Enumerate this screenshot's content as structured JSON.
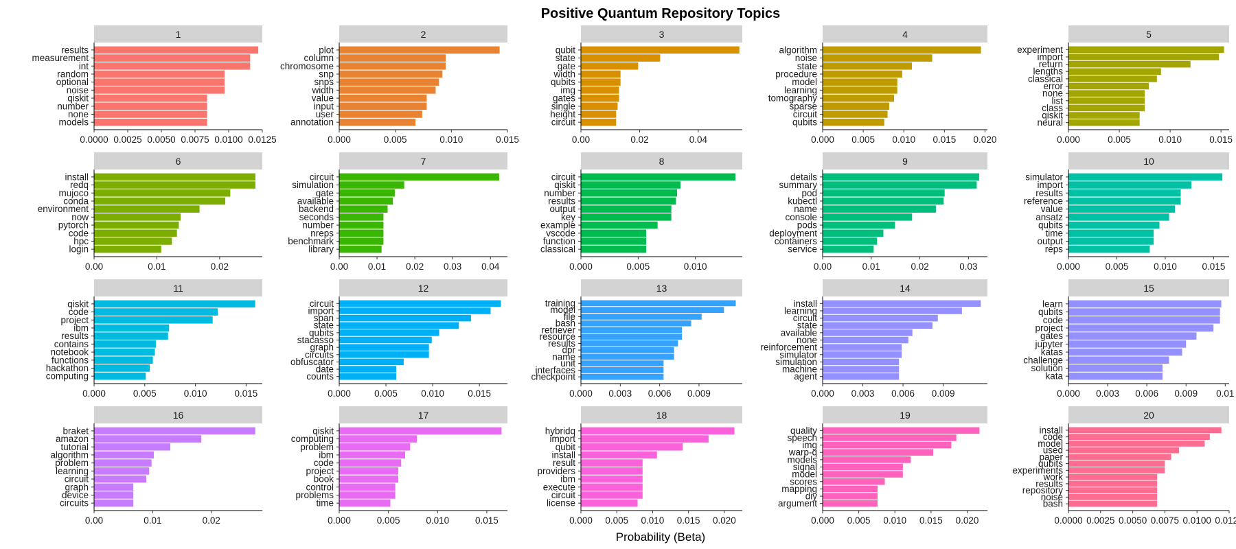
{
  "chart_data": {
    "type": "bar",
    "title": "Positive Quantum Repository Topics",
    "xlabel": "Probability (Beta)",
    "ylabel": "",
    "orientation": "horizontal",
    "grid": false,
    "legend": "none",
    "panels": [
      {
        "label": "1",
        "color": "#F8766D",
        "xlim": [
          0,
          0.0125
        ],
        "ticks": [
          0,
          0.0025,
          0.005,
          0.0075,
          0.01,
          0.0125
        ],
        "tick_labels": [
          "0.0000",
          "0.0025",
          "0.0050",
          "0.0075",
          "0.0100",
          "0.0125"
        ],
        "terms": [
          "results",
          "measurement",
          "int",
          "random",
          "optional",
          "noise",
          "qiskit",
          "number",
          "none",
          "models"
        ],
        "values": [
          0.0122,
          0.0116,
          0.0116,
          0.0097,
          0.0097,
          0.0097,
          0.0084,
          0.0084,
          0.0084,
          0.0084
        ]
      },
      {
        "label": "2",
        "color": "#EA8331",
        "xlim": [
          0,
          0.015
        ],
        "ticks": [
          0,
          0.005,
          0.01,
          0.015
        ],
        "tick_labels": [
          "0.000",
          "0.005",
          "0.010",
          "0.015"
        ],
        "terms": [
          "plot",
          "column",
          "chromosome",
          "snp",
          "snps",
          "width",
          "value",
          "input",
          "user",
          "annotation"
        ],
        "values": [
          0.0143,
          0.0095,
          0.0095,
          0.0092,
          0.0089,
          0.0086,
          0.0078,
          0.0078,
          0.0074,
          0.0068
        ]
      },
      {
        "label": "3",
        "color": "#D89000",
        "xlim": [
          0,
          0.055
        ],
        "ticks": [
          0,
          0.02,
          0.04
        ],
        "tick_labels": [
          "0.00",
          "0.02",
          "0.04"
        ],
        "terms": [
          "qubit",
          "state",
          "gate",
          "width",
          "qubits",
          "img",
          "gates",
          "single",
          "height",
          "circuit"
        ],
        "values": [
          0.054,
          0.027,
          0.0195,
          0.0135,
          0.0135,
          0.013,
          0.013,
          0.0125,
          0.012,
          0.012
        ]
      },
      {
        "label": "4",
        "color": "#C09B00",
        "xlim": [
          0,
          0.0203
        ],
        "ticks": [
          0,
          0.005,
          0.01,
          0.015,
          0.02
        ],
        "tick_labels": [
          "0.000",
          "0.005",
          "0.010",
          "0.015",
          "0.020"
        ],
        "terms": [
          "algorithm",
          "noise",
          "state",
          "procedure",
          "model",
          "learning",
          "tomography",
          "sparse",
          "circuit",
          "qubits"
        ],
        "values": [
          0.0195,
          0.0135,
          0.011,
          0.0098,
          0.0092,
          0.0092,
          0.0088,
          0.0082,
          0.008,
          0.0076
        ]
      },
      {
        "label": "5",
        "color": "#A3A500",
        "xlim": [
          0,
          0.0158
        ],
        "ticks": [
          0,
          0.005,
          0.01,
          0.015
        ],
        "tick_labels": [
          "0.000",
          "0.005",
          "0.010",
          "0.015"
        ],
        "terms": [
          "experiment",
          "import",
          "return",
          "lengths",
          "classical",
          "error",
          "none",
          "list",
          "class",
          "qiskit",
          "neural"
        ],
        "values": [
          0.0153,
          0.0148,
          0.012,
          0.0091,
          0.0087,
          0.0079,
          0.0075,
          0.0075,
          0.0075,
          0.007,
          0.007
        ]
      },
      {
        "label": "6",
        "color": "#7CAE00",
        "xlim": [
          0,
          0.0268
        ],
        "ticks": [
          0,
          0.01,
          0.02
        ],
        "tick_labels": [
          "0.00",
          "0.01",
          "0.02"
        ],
        "terms": [
          "install",
          "redq",
          "mujoco",
          "conda",
          "environment",
          "now",
          "pytorch",
          "code",
          "hpc",
          "login"
        ],
        "values": [
          0.0257,
          0.0257,
          0.0217,
          0.0209,
          0.0168,
          0.0138,
          0.0135,
          0.0132,
          0.0124,
          0.0107
        ]
      },
      {
        "label": "7",
        "color": "#39B600",
        "xlim": [
          0,
          0.0445
        ],
        "ticks": [
          0,
          0.01,
          0.02,
          0.03,
          0.04
        ],
        "tick_labels": [
          "0.00",
          "0.01",
          "0.02",
          "0.03",
          "0.04"
        ],
        "terms": [
          "circuit",
          "simulation",
          "gate",
          "available",
          "backend",
          "seconds",
          "number",
          "nreps",
          "benchmark",
          "library"
        ],
        "values": [
          0.0423,
          0.0172,
          0.0147,
          0.0142,
          0.0128,
          0.0117,
          0.0117,
          0.0117,
          0.0117,
          0.0112
        ]
      },
      {
        "label": "8",
        "color": "#00BB4E",
        "xlim": [
          0,
          0.0141
        ],
        "ticks": [
          0,
          0.005,
          0.01
        ],
        "tick_labels": [
          "0.000",
          "0.005",
          "0.010"
        ],
        "terms": [
          "circuit",
          "qiskit",
          "number",
          "results",
          "output",
          "key",
          "example",
          "vscode",
          "function",
          "classical"
        ],
        "values": [
          0.0135,
          0.0087,
          0.0084,
          0.0083,
          0.0079,
          0.0079,
          0.0067,
          0.0057,
          0.0057,
          0.0057
        ]
      },
      {
        "label": "9",
        "color": "#00BF7D",
        "xlim": [
          0,
          0.0339
        ],
        "ticks": [
          0,
          0.01,
          0.02,
          0.03
        ],
        "tick_labels": [
          "0.00",
          "0.01",
          "0.02",
          "0.03"
        ],
        "terms": [
          "details",
          "summary",
          "pod",
          "kubectl",
          "name",
          "console",
          "pods",
          "deployment",
          "containers",
          "service"
        ],
        "values": [
          0.0322,
          0.0317,
          0.0251,
          0.0249,
          0.0233,
          0.0184,
          0.0149,
          0.0125,
          0.0112,
          0.0105
        ]
      },
      {
        "label": "10",
        "color": "#00C1A3",
        "xlim": [
          0,
          0.0166
        ],
        "ticks": [
          0,
          0.005,
          0.01,
          0.015
        ],
        "tick_labels": [
          "0.000",
          "0.005",
          "0.010",
          "0.015"
        ],
        "terms": [
          "simulator",
          "import",
          "results",
          "reference",
          "value",
          "ansatz",
          "qubits",
          "time",
          "output",
          "reps"
        ],
        "values": [
          0.0159,
          0.0127,
          0.0116,
          0.0116,
          0.011,
          0.0104,
          0.0094,
          0.0088,
          0.0088,
          0.0084
        ]
      },
      {
        "label": "11",
        "color": "#00BAE0",
        "xlim": [
          0,
          0.0166
        ],
        "ticks": [
          0,
          0.005,
          0.01,
          0.015
        ],
        "tick_labels": [
          "0.000",
          "0.005",
          "0.010",
          "0.015"
        ],
        "terms": [
          "qiskit",
          "code",
          "project",
          "ibm",
          "results",
          "contains",
          "notebook",
          "functions",
          "hackathon",
          "computing"
        ],
        "values": [
          0.0159,
          0.0122,
          0.0117,
          0.0074,
          0.0073,
          0.0061,
          0.006,
          0.0058,
          0.0055,
          0.0051
        ]
      },
      {
        "label": "12",
        "color": "#00B0F6",
        "xlim": [
          0,
          0.018
        ],
        "ticks": [
          0,
          0.005,
          0.01,
          0.015
        ],
        "tick_labels": [
          "0.000",
          "0.005",
          "0.010",
          "0.015"
        ],
        "terms": [
          "circuit",
          "import",
          "span",
          "state",
          "qubits",
          "stacasso",
          "graph",
          "circuits",
          "obfuscator",
          "date",
          "counts"
        ],
        "values": [
          0.0173,
          0.0162,
          0.0141,
          0.0128,
          0.0107,
          0.0099,
          0.0096,
          0.0096,
          0.0069,
          0.0061,
          0.0061
        ]
      },
      {
        "label": "13",
        "color": "#35A2FF",
        "xlim": [
          0,
          0.0123
        ],
        "ticks": [
          0,
          0.003,
          0.006,
          0.009
        ],
        "tick_labels": [
          "0.000",
          "0.003",
          "0.006",
          "0.009"
        ],
        "terms": [
          "training",
          "model",
          "file",
          "bash",
          "retriever",
          "resource",
          "results",
          "dpr",
          "name",
          "unit",
          "interfaces",
          "checkpoint"
        ],
        "values": [
          0.0118,
          0.0109,
          0.0092,
          0.0084,
          0.0077,
          0.0077,
          0.0074,
          0.0071,
          0.0071,
          0.0063,
          0.0063,
          0.0063
        ]
      },
      {
        "label": "14",
        "color": "#9590FF",
        "xlim": [
          0,
          0.0123
        ],
        "ticks": [
          0,
          0.003,
          0.006,
          0.009
        ],
        "tick_labels": [
          "0.000",
          "0.003",
          "0.006",
          "0.009"
        ],
        "terms": [
          "install",
          "learning",
          "circuit",
          "state",
          "available",
          "none",
          "reinforcement",
          "simulator",
          "simulation",
          "machine",
          "agent"
        ],
        "values": [
          0.0118,
          0.0104,
          0.0086,
          0.0082,
          0.0067,
          0.0064,
          0.0059,
          0.0059,
          0.0057,
          0.0057,
          0.0057
        ]
      },
      {
        "label": "15",
        "color": "#9590FF",
        "xlim": [
          0,
          0.0123
        ],
        "ticks": [
          0,
          0.003,
          0.006,
          0.009,
          0.012
        ],
        "tick_labels": [
          "0.000",
          "0.003",
          "0.006",
          "0.009",
          "0.01"
        ],
        "terms": [
          "learn",
          "qubits",
          "code",
          "project",
          "gates",
          "jupyter",
          "katas",
          "challenge",
          "solution",
          "kata"
        ],
        "values": [
          0.0117,
          0.0116,
          0.0116,
          0.0111,
          0.0098,
          0.009,
          0.0087,
          0.0077,
          0.0072,
          0.0072
        ]
      },
      {
        "label": "16",
        "color": "#C77CFF",
        "xlim": [
          0,
          0.0287
        ],
        "ticks": [
          0,
          0.01,
          0.02
        ],
        "tick_labels": [
          "0.00",
          "0.01",
          "0.02"
        ],
        "terms": [
          "braket",
          "amazon",
          "tutorial",
          "algorithm",
          "problem",
          "learning",
          "circuit",
          "graph",
          "device",
          "circuits"
        ],
        "values": [
          0.0275,
          0.0183,
          0.013,
          0.0102,
          0.0098,
          0.0094,
          0.0089,
          0.0067,
          0.0067,
          0.0067
        ]
      },
      {
        "label": "17",
        "color": "#E76BF3",
        "xlim": [
          0,
          0.0171
        ],
        "ticks": [
          0,
          0.005,
          0.01,
          0.015
        ],
        "tick_labels": [
          "0.000",
          "0.005",
          "0.010",
          "0.015"
        ],
        "terms": [
          "qiskit",
          "computing",
          "problem",
          "ibm",
          "code",
          "project",
          "book",
          "control",
          "problems",
          "time"
        ],
        "values": [
          0.0165,
          0.0079,
          0.0072,
          0.0067,
          0.0063,
          0.006,
          0.006,
          0.0057,
          0.0057,
          0.0052
        ]
      },
      {
        "label": "18",
        "color": "#FA62DB",
        "xlim": [
          0,
          0.0225
        ],
        "ticks": [
          0,
          0.005,
          0.01,
          0.015,
          0.02
        ],
        "tick_labels": [
          "0.000",
          "0.005",
          "0.010",
          "0.015",
          "0.020"
        ],
        "terms": [
          "hybridq",
          "import",
          "qubit",
          "install",
          "result",
          "providers",
          "ibm",
          "execute",
          "circuit",
          "license"
        ],
        "values": [
          0.0214,
          0.0178,
          0.0142,
          0.0106,
          0.0086,
          0.0086,
          0.0086,
          0.0086,
          0.0086,
          0.0079
        ]
      },
      {
        "label": "19",
        "color": "#FF62BC",
        "xlim": [
          0,
          0.0228
        ],
        "ticks": [
          0,
          0.005,
          0.01,
          0.015,
          0.02
        ],
        "tick_labels": [
          "0.000",
          "0.005",
          "0.010",
          "0.015",
          "0.020"
        ],
        "terms": [
          "quality",
          "speech",
          "img",
          "warp-q",
          "models",
          "signal",
          "model",
          "scores",
          "mapping",
          "diy",
          "argument"
        ],
        "values": [
          0.0217,
          0.0185,
          0.0178,
          0.0153,
          0.0122,
          0.0111,
          0.0111,
          0.0086,
          0.0076,
          0.0076,
          0.0076
        ]
      },
      {
        "label": "20",
        "color": "#FF6C91",
        "xlim": [
          0,
          0.0125
        ],
        "ticks": [
          0,
          0.0025,
          0.005,
          0.0075,
          0.01,
          0.0125
        ],
        "tick_labels": [
          "0.0000",
          "0.0025",
          "0.0050",
          "0.0075",
          "0.0100",
          "0.0125"
        ],
        "terms": [
          "install",
          "code",
          "model",
          "used",
          "paper",
          "qubits",
          "experiments",
          "work",
          "results",
          "repository",
          "noise",
          "bash"
        ],
        "values": [
          0.0119,
          0.011,
          0.0106,
          0.0086,
          0.008,
          0.0075,
          0.0075,
          0.0069,
          0.0069,
          0.0069,
          0.0069,
          0.0069
        ]
      }
    ]
  }
}
